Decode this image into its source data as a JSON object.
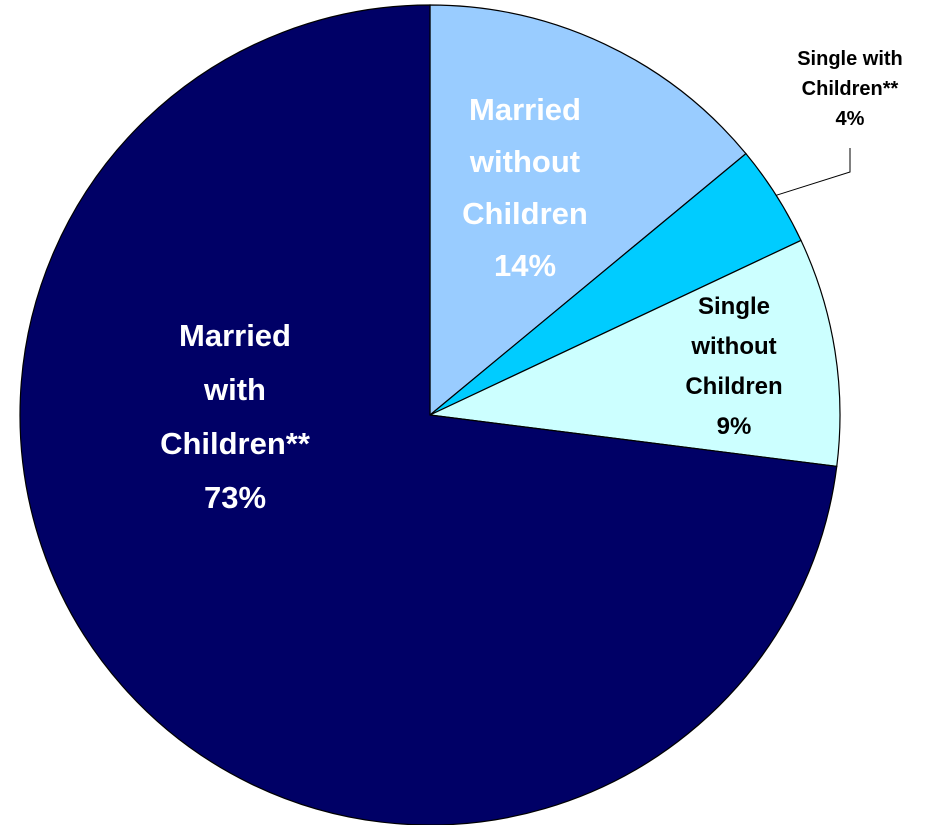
{
  "chart_data": {
    "type": "pie",
    "title": "",
    "slices": [
      {
        "label_lines": [
          "Married",
          "without",
          "Children"
        ],
        "percent_label": "14%",
        "value": 14,
        "color": "#99CCFF",
        "label_color": "#FFFFFF"
      },
      {
        "label_lines": [
          "Single with",
          "Children**"
        ],
        "percent_label": "4%",
        "value": 4,
        "color": "#00CCFF",
        "label_color": "#000000",
        "external_label": true
      },
      {
        "label_lines": [
          "Single",
          "without",
          "Children"
        ],
        "percent_label": "9%",
        "value": 9,
        "color": "#CCFFFF",
        "label_color": "#000000"
      },
      {
        "label_lines": [
          "Married",
          "with",
          "Children**"
        ],
        "percent_label": "73%",
        "value": 73,
        "color": "#000066",
        "label_color": "#FFFFFF"
      }
    ],
    "start_angle_deg": 0,
    "direction": "clockwise",
    "legend": "none"
  }
}
